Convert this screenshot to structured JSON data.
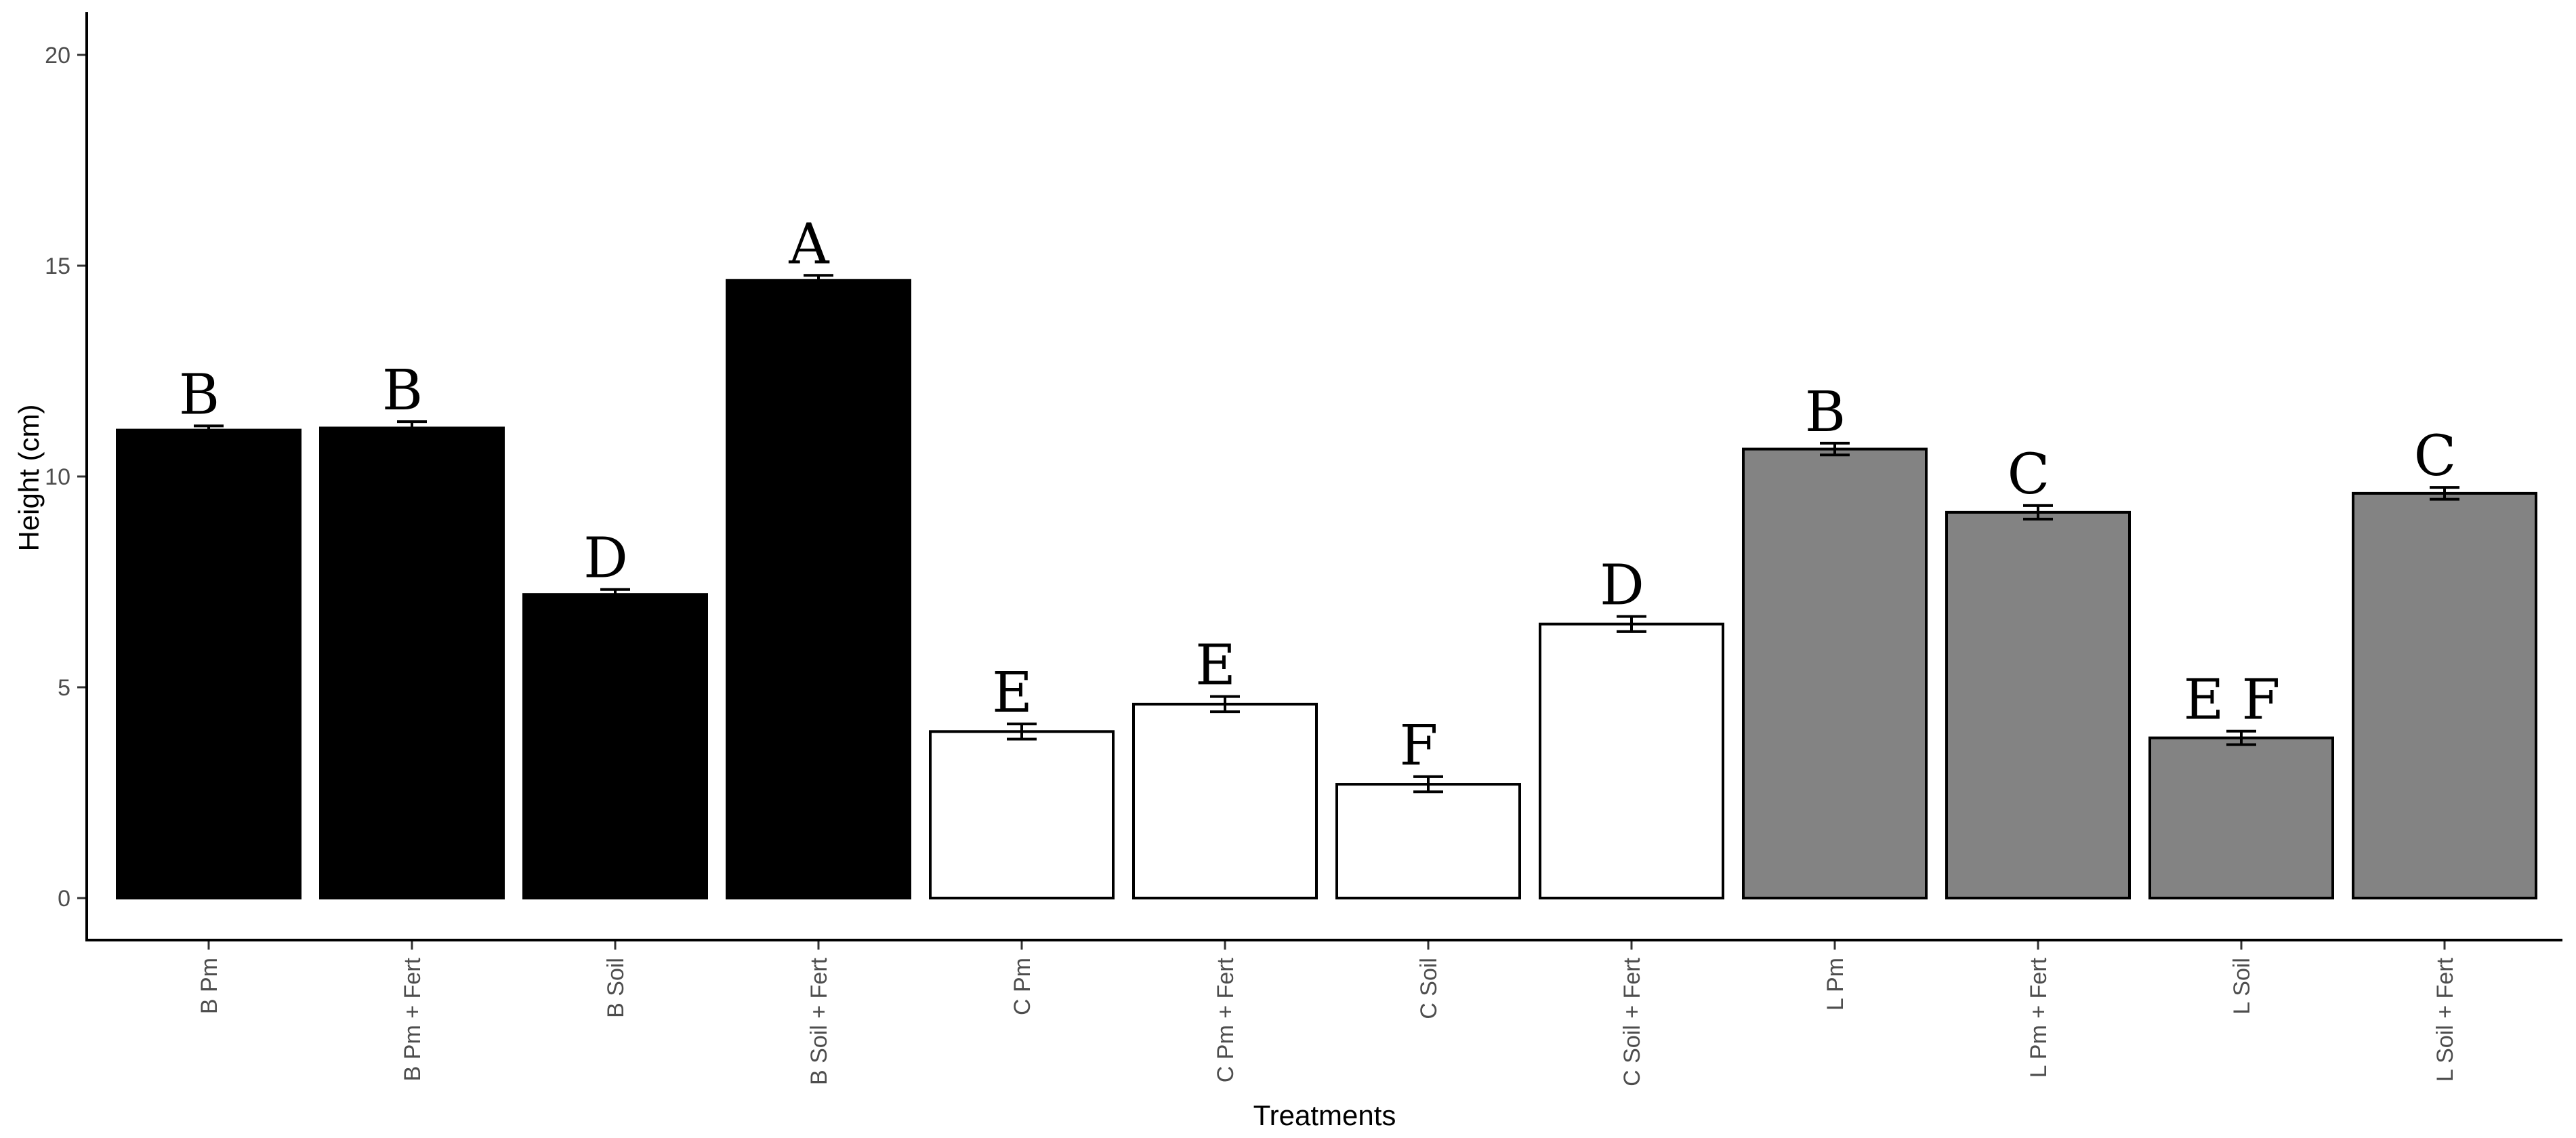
{
  "chart_data": {
    "type": "bar",
    "xlabel": "Treatments",
    "ylabel": "Height (cm)",
    "ylim": [
      0,
      20
    ],
    "yticks": [
      0,
      5,
      10,
      15,
      20
    ],
    "grid": false,
    "categories": [
      "B Pm",
      "B Pm + Fert",
      "B Soil",
      "B Soil + Fert",
      "C Pm",
      "C Pm + Fert",
      "C Soil",
      "C Soil + Fert",
      "L Pm",
      "L Pm + Fert",
      "L Soil",
      "L Soil + Fert"
    ],
    "values": [
      11.1,
      11.15,
      7.2,
      14.65,
      3.95,
      4.6,
      2.7,
      6.5,
      10.65,
      9.15,
      3.8,
      9.6
    ],
    "errors": [
      0.1,
      0.15,
      0.12,
      0.12,
      0.18,
      0.18,
      0.18,
      0.18,
      0.14,
      0.16,
      0.16,
      0.14
    ],
    "letters": [
      "B",
      "B",
      "D",
      "A",
      "E",
      "E",
      "F",
      "D",
      "B",
      "C",
      "E F",
      "C"
    ],
    "fill_colors": [
      "#000000",
      "#000000",
      "#000000",
      "#000000",
      "#ffffff",
      "#ffffff",
      "#ffffff",
      "#ffffff",
      "#838383",
      "#838383",
      "#838383",
      "#838383"
    ]
  }
}
